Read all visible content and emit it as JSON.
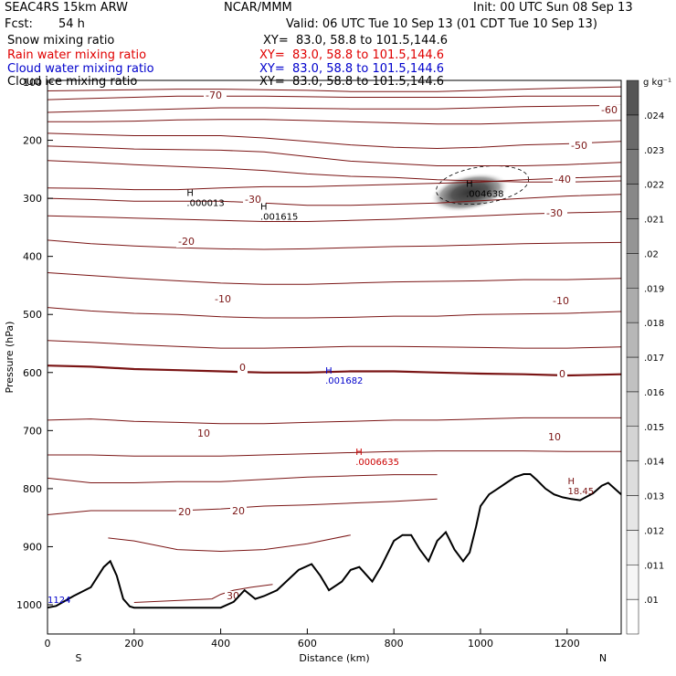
{
  "header": {
    "model": "SEAC4RS 15km ARW",
    "center": "NCAR/MMM",
    "init": "Init: 00 UTC Sun 08 Sep 13",
    "fcst_label": "Fcst:",
    "fcst_value": "54 h",
    "valid": "Valid: 06 UTC Tue 10 Sep 13 (01 CDT Tue 10 Sep 13)"
  },
  "fields": [
    {
      "name": "Snow mixing ratio",
      "xy": "XY=  83.0, 58.8 to 101.5,144.6",
      "color": "#000000"
    },
    {
      "name": "Rain water mixing ratio",
      "xy": "XY=  83.0, 58.8 to 101.5,144.6",
      "color": "#e00000"
    },
    {
      "name": "Cloud water mixing ratio",
      "xy": "XY=  83.0, 58.8 to 101.5,144.6",
      "color": "#0000cc"
    },
    {
      "name": "Cloud ice mixing ratio",
      "xy": "XY=  83.0, 58.8 to 101.5,144.6",
      "color": "#000000"
    }
  ],
  "colorbar": {
    "unit": "g kg⁻¹",
    "levels": [
      ".01",
      ".011",
      ".012",
      ".013",
      ".014",
      ".015",
      ".016",
      ".017",
      ".018",
      ".019",
      ".02",
      ".021",
      ".022",
      ".023",
      ".024"
    ],
    "colors": [
      "#ffffff",
      "#f6f6f6",
      "#eeeeee",
      "#e6e6e6",
      "#dddddd",
      "#d4d4d4",
      "#cbcbcb",
      "#c1c1c1",
      "#b7b7b7",
      "#acacac",
      "#a1a1a1",
      "#959595",
      "#888888",
      "#7a7a7a",
      "#6a6a6a",
      "#555555"
    ]
  },
  "chart_data": {
    "type": "cross-section",
    "xlabel": "Distance (km)",
    "ylabel": "Pressure (hPa)",
    "xlim": [
      0,
      1325
    ],
    "ylim": [
      1050,
      100
    ],
    "x_ticks": [
      "0",
      "200",
      "400",
      "600",
      "800",
      "1000",
      "1200"
    ],
    "y_ticks": [
      "100",
      "200",
      "300",
      "400",
      "500",
      "600",
      "700",
      "800",
      "900",
      "1000"
    ],
    "left_end": "S",
    "right_end": "N",
    "temperature_contours": [
      {
        "value": 30,
        "label": "30",
        "pressure": [
          996,
          990,
          982,
          975,
          970,
          965
        ],
        "x": [
          200,
          380,
          400,
          430,
          470,
          520
        ]
      },
      {
        "value": 25,
        "label": "",
        "pressure": [
          885,
          890,
          905,
          908,
          905,
          895,
          880
        ],
        "x": [
          140,
          200,
          300,
          400,
          500,
          600,
          700
        ]
      },
      {
        "value": 20,
        "label": "20",
        "pressure": [
          845,
          838,
          838,
          838,
          835,
          830,
          828,
          825,
          822,
          818
        ],
        "x": [
          0,
          100,
          200,
          300,
          400,
          500,
          600,
          700,
          800,
          900
        ]
      },
      {
        "value": 15,
        "label": "",
        "pressure": [
          782,
          790,
          790,
          788,
          788,
          784,
          780,
          778,
          776,
          776
        ],
        "x": [
          0,
          100,
          200,
          300,
          400,
          500,
          600,
          700,
          800,
          900
        ]
      },
      {
        "value": 10,
        "label": "10",
        "pressure": [
          742,
          742,
          744,
          744,
          744,
          742,
          740,
          738,
          736,
          735,
          735,
          735,
          736,
          736
        ],
        "x": [
          0,
          100,
          200,
          300,
          400,
          500,
          600,
          700,
          800,
          900,
          1000,
          1100,
          1200,
          1325
        ]
      },
      {
        "value": 5,
        "label": "",
        "pressure": [
          682,
          680,
          684,
          686,
          688,
          688,
          686,
          684,
          682,
          682,
          680,
          678,
          678,
          678
        ],
        "x": [
          0,
          100,
          200,
          300,
          400,
          500,
          600,
          700,
          800,
          900,
          1000,
          1100,
          1200,
          1325
        ]
      },
      {
        "value": 0,
        "label": "0",
        "pressure": [
          588,
          590,
          594,
          596,
          598,
          600,
          600,
          598,
          598,
          600,
          602,
          603,
          605,
          603
        ],
        "x": [
          0,
          100,
          200,
          300,
          400,
          500,
          600,
          700,
          800,
          900,
          1000,
          1100,
          1200,
          1325
        ]
      },
      {
        "value": -5,
        "label": "",
        "pressure": [
          545,
          548,
          552,
          555,
          558,
          558,
          557,
          555,
          555,
          556,
          557,
          558,
          558,
          556
        ],
        "x": [
          0,
          100,
          200,
          300,
          400,
          500,
          600,
          700,
          800,
          900,
          1000,
          1100,
          1200,
          1325
        ]
      },
      {
        "value": -10,
        "label": "-10",
        "pressure": [
          488,
          494,
          498,
          500,
          504,
          506,
          506,
          505,
          503,
          503,
          500,
          499,
          498,
          495
        ],
        "x": [
          0,
          100,
          200,
          300,
          400,
          500,
          600,
          700,
          800,
          900,
          1000,
          1100,
          1200,
          1325
        ]
      },
      {
        "value": -15,
        "label": "",
        "pressure": [
          428,
          433,
          438,
          442,
          446,
          448,
          448,
          446,
          444,
          443,
          442,
          440,
          440,
          438
        ],
        "x": [
          0,
          100,
          200,
          300,
          400,
          500,
          600,
          700,
          800,
          900,
          1000,
          1100,
          1200,
          1325
        ]
      },
      {
        "value": -20,
        "label": "-20",
        "pressure": [
          372,
          378,
          382,
          385,
          387,
          388,
          387,
          385,
          383,
          382,
          380,
          378,
          377,
          376
        ],
        "x": [
          0,
          100,
          200,
          300,
          400,
          500,
          600,
          700,
          800,
          900,
          1000,
          1100,
          1200,
          1325
        ]
      },
      {
        "value": -25,
        "label": "",
        "pressure": [
          330,
          332,
          334,
          336,
          338,
          340,
          340,
          338,
          336,
          333,
          330,
          327,
          325,
          323
        ],
        "x": [
          0,
          100,
          200,
          300,
          400,
          500,
          600,
          700,
          800,
          900,
          1000,
          1100,
          1200,
          1325
        ]
      },
      {
        "value": -30,
        "label": "-30",
        "pressure": [
          300,
          302,
          305,
          305,
          305,
          308,
          312,
          312,
          310,
          308,
          304,
          300,
          296,
          293
        ],
        "x": [
          0,
          100,
          200,
          300,
          400,
          500,
          600,
          700,
          800,
          900,
          1000,
          1100,
          1200,
          1325
        ]
      },
      {
        "value": -35,
        "label": "",
        "pressure": [
          282,
          283,
          285,
          285,
          282,
          280,
          280,
          278,
          276,
          274,
          272,
          268,
          265,
          262
        ],
        "x": [
          0,
          100,
          200,
          300,
          400,
          500,
          600,
          700,
          800,
          900,
          1000,
          1100,
          1200,
          1325
        ]
      },
      {
        "value": -40,
        "label": "-40",
        "pressure": [
          235,
          238,
          242,
          245,
          248,
          252,
          258,
          262,
          264,
          268,
          270,
          272,
          272,
          270
        ],
        "x": [
          0,
          100,
          200,
          300,
          400,
          500,
          600,
          700,
          800,
          900,
          1000,
          1100,
          1200,
          1325
        ]
      },
      {
        "value": -45,
        "label": "",
        "pressure": [
          210,
          212,
          215,
          216,
          217,
          220,
          228,
          236,
          240,
          244,
          244,
          244,
          242,
          238
        ],
        "x": [
          0,
          100,
          200,
          300,
          400,
          500,
          600,
          700,
          800,
          900,
          1000,
          1100,
          1200,
          1325
        ]
      },
      {
        "value": -50,
        "label": "-50",
        "pressure": [
          188,
          190,
          192,
          192,
          192,
          196,
          202,
          208,
          212,
          214,
          212,
          208,
          206,
          202
        ],
        "x": [
          0,
          100,
          200,
          300,
          400,
          500,
          600,
          700,
          800,
          900,
          1000,
          1100,
          1200,
          1325
        ]
      },
      {
        "value": -55,
        "label": "",
        "pressure": [
          168,
          168,
          167,
          165,
          164,
          164,
          166,
          168,
          170,
          172,
          172,
          170,
          168,
          166
        ],
        "x": [
          0,
          100,
          200,
          300,
          400,
          500,
          600,
          700,
          800,
          900,
          1000,
          1100,
          1200,
          1325
        ]
      },
      {
        "value": -60,
        "label": "-60",
        "pressure": [
          152,
          150,
          148,
          146,
          144,
          144,
          145,
          146,
          146,
          146,
          144,
          142,
          141,
          140
        ],
        "x": [
          0,
          100,
          200,
          300,
          400,
          500,
          600,
          700,
          800,
          900,
          1000,
          1100,
          1200,
          1325
        ]
      },
      {
        "value": -65,
        "label": "",
        "pressure": [
          130,
          128,
          126,
          124,
          124,
          124,
          125,
          126,
          126,
          126,
          126,
          124,
          124,
          124
        ],
        "x": [
          0,
          100,
          200,
          300,
          400,
          500,
          600,
          700,
          800,
          900,
          1000,
          1100,
          1200,
          1325
        ]
      },
      {
        "value": -70,
        "label": "-70",
        "pressure": [
          115,
          114,
          113,
          112,
          112,
          113,
          114,
          116,
          116,
          116,
          114,
          112,
          110,
          108
        ],
        "x": [
          0,
          100,
          200,
          300,
          400,
          500,
          600,
          700,
          800,
          900,
          1000,
          1100,
          1200,
          1325
        ]
      }
    ],
    "terrain": {
      "x": [
        0,
        20,
        60,
        100,
        130,
        145,
        160,
        175,
        190,
        200,
        300,
        400,
        430,
        455,
        480,
        500,
        530,
        580,
        610,
        630,
        650,
        680,
        700,
        720,
        750,
        770,
        800,
        820,
        840,
        860,
        880,
        900,
        920,
        940,
        960,
        975,
        990,
        1000,
        1020,
        1040,
        1060,
        1080,
        1100,
        1115,
        1130,
        1150,
        1170,
        1190,
        1210,
        1230,
        1250,
        1260,
        1280,
        1295,
        1310,
        1325
      ],
      "pressure": [
        1005,
        1002,
        985,
        970,
        935,
        925,
        950,
        990,
        1003,
        1005,
        1005,
        1005,
        995,
        975,
        990,
        985,
        975,
        940,
        930,
        950,
        975,
        960,
        940,
        935,
        960,
        935,
        890,
        880,
        880,
        905,
        925,
        890,
        875,
        905,
        925,
        910,
        865,
        830,
        810,
        800,
        790,
        780,
        775,
        775,
        785,
        800,
        810,
        815,
        818,
        820,
        812,
        808,
        795,
        790,
        800,
        810
      ]
    },
    "cloud_ice_max": {
      "label": "H",
      "value": ".004638",
      "x": 975,
      "pressure": 296
    },
    "snow_max_1": {
      "label": "H",
      "value": ".000013",
      "x": 330,
      "pressure": 312
    },
    "snow_max_2": {
      "label": "H",
      "value": ".001615",
      "x": 500,
      "pressure": 335
    },
    "cloud_water_max": {
      "label": "H",
      "value": ".001682",
      "x": 650,
      "pressure": 618
    },
    "rain_water_max": {
      "label": "H",
      "value": ".0006635",
      "x": 720,
      "pressure": 758
    },
    "temp_max": {
      "label": "H",
      "value": "18.45",
      "x": 1210,
      "pressure": 808
    },
    "left_edge_value": "1124"
  }
}
